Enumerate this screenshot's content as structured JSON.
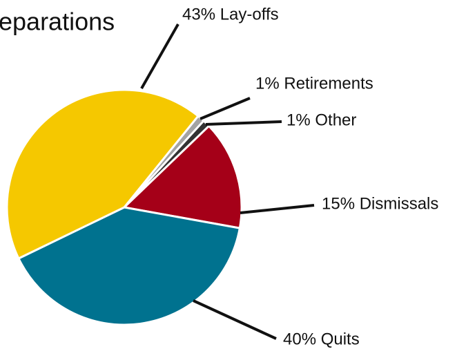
{
  "chart_data": {
    "type": "pie",
    "title": "eparations",
    "categories": [
      "Retirements",
      "Other",
      "Dismissals",
      "Quits",
      "Lay-offs"
    ],
    "values": [
      1,
      1,
      15,
      40,
      43
    ],
    "value_labels": [
      "1% Retirements",
      "1% Other",
      "15% Dismissals",
      "40% Quits",
      "43% Lay-offs"
    ],
    "colors": [
      "#a3a3a3",
      "#333333",
      "#a50018",
      "#00728f",
      "#f5c800"
    ]
  }
}
